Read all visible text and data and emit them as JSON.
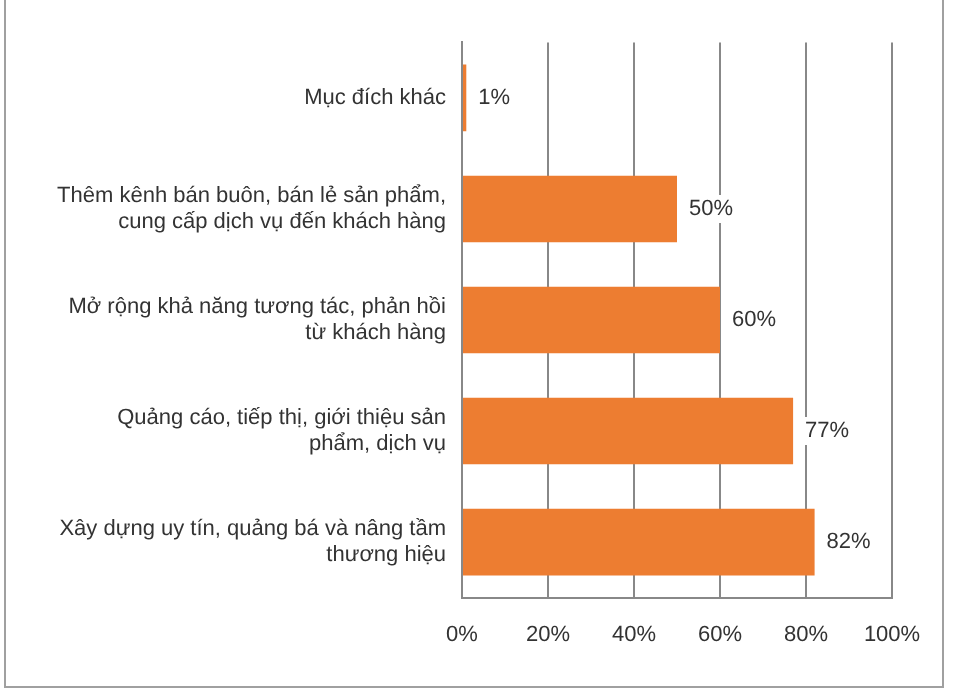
{
  "chart_data": {
    "type": "bar",
    "orientation": "horizontal",
    "categories": [
      "Mục đích khác",
      "Thêm kênh bán buôn, bán lẻ sản phẩm, cung cấp dịch vụ đến khách hàng",
      "Mở rộng khả năng tương tác, phản hồi từ khách hàng",
      "Quảng cáo, tiếp thị, giới thiệu sản phẩm, dịch vụ",
      "Xây dựng uy tín, quảng bá và nâng tầm thương hiệu"
    ],
    "values": [
      1,
      50,
      60,
      77,
      82
    ],
    "value_labels": [
      "1%",
      "50%",
      "60%",
      "77%",
      "82%"
    ],
    "color": "#ed7d31",
    "xlim": [
      0,
      100
    ],
    "xticks": [
      {
        "value": 0,
        "label": "0%"
      },
      {
        "value": 20,
        "label": "20%"
      },
      {
        "value": 40,
        "label": "40%"
      },
      {
        "value": 60,
        "label": "60%"
      },
      {
        "value": 80,
        "label": "80%"
      },
      {
        "value": 100,
        "label": "100%"
      }
    ],
    "grid": "x",
    "legend": false
  }
}
